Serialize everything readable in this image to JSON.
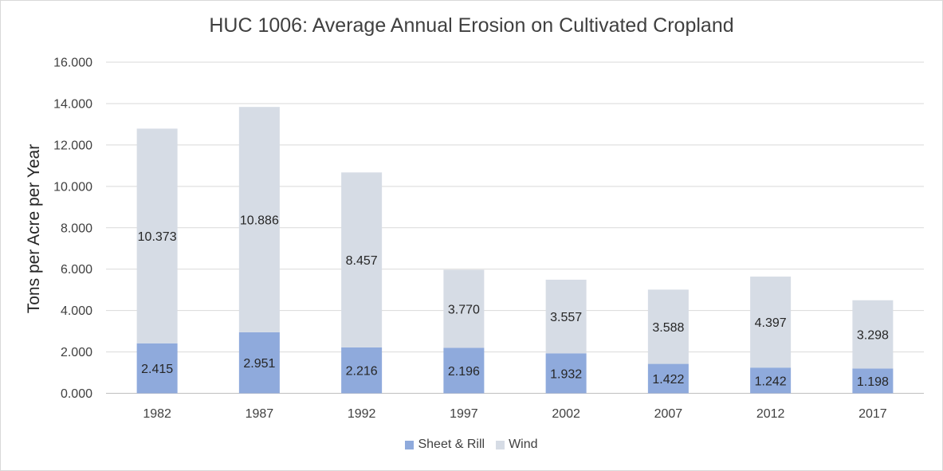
{
  "chart_data": {
    "type": "bar",
    "stacked": true,
    "title": "HUC 1006: Average Annual Erosion on Cultivated Cropland",
    "xlabel": "",
    "ylabel": "Tons per Acre per Year",
    "categories": [
      "1982",
      "1987",
      "1992",
      "1997",
      "2002",
      "2007",
      "2012",
      "2017"
    ],
    "series": [
      {
        "name": "Sheet & Rill",
        "color": "#8faadc",
        "values": [
          2.415,
          2.951,
          2.216,
          2.196,
          1.932,
          1.422,
          1.242,
          1.198
        ],
        "labels": [
          "2.415",
          "2.951",
          "2.216",
          "2.196",
          "1.932",
          "1.422",
          "1.242",
          "1.198"
        ]
      },
      {
        "name": "Wind",
        "color": "#d6dce5",
        "values": [
          10.373,
          10.886,
          8.457,
          3.77,
          3.557,
          3.588,
          4.397,
          3.298
        ],
        "labels": [
          "10.373",
          "10.886",
          "8.457",
          "3.770",
          "3.557",
          "3.588",
          "4.397",
          "3.298"
        ]
      }
    ],
    "ylim": [
      0,
      16
    ],
    "yticks": [
      "0.000",
      "2.000",
      "4.000",
      "6.000",
      "8.000",
      "10.000",
      "12.000",
      "14.000",
      "16.000"
    ],
    "grid": true,
    "legend_position": "bottom"
  }
}
